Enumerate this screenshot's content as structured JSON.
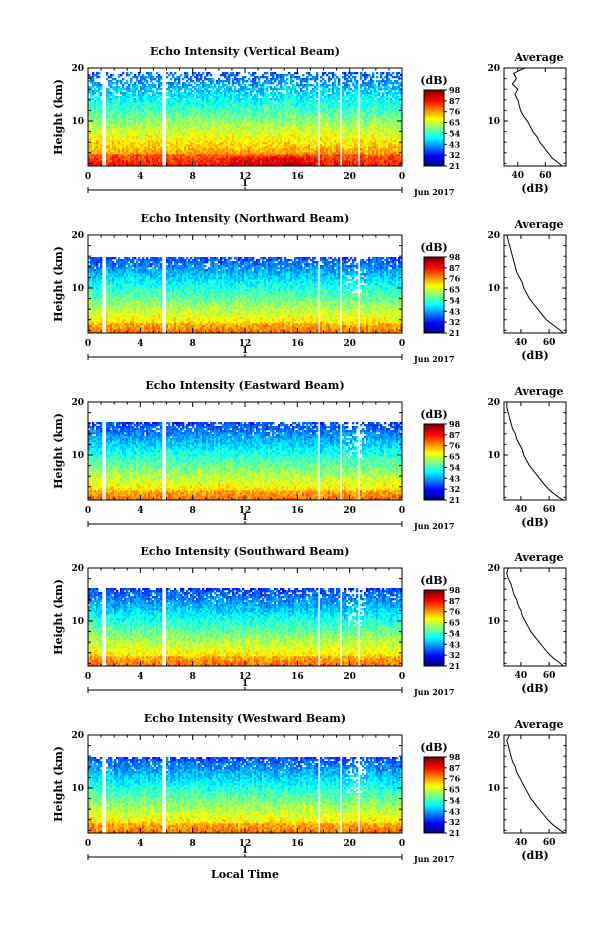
{
  "figure": {
    "xlabel": "Local Time",
    "date_label": "Jun 2017",
    "day_label": "1",
    "average_title": "Average",
    "average_xlabel": "(dB)",
    "colorbar_unit": "(dB)"
  },
  "chart_data": [
    {
      "type": "heatmap",
      "title": "Echo Intensity (Vertical Beam)",
      "ylabel": "Height (km)",
      "xlabel": "Local Time",
      "x_ticks": [
        "0",
        "4",
        "8",
        "12",
        "16",
        "20",
        "0"
      ],
      "x_range": [
        0,
        24
      ],
      "y_ticks": [
        10,
        20
      ],
      "y_range": [
        1.5,
        20
      ],
      "colorbar": {
        "unit": "(dB)",
        "ticks": [
          21,
          32,
          43,
          54,
          65,
          76,
          87,
          98
        ]
      },
      "gaps_hours": [
        [
          1.0,
          1.3
        ],
        [
          5.6,
          5.9
        ],
        [
          17.6,
          17.8
        ],
        [
          19.2,
          19.4
        ],
        [
          20.6,
          20.8
        ]
      ],
      "average_profile": {
        "title": "Average",
        "xlabel": "(dB)",
        "x_ticks": [
          40,
          60
        ],
        "x_range": [
          30,
          75
        ],
        "y_ticks": [
          10,
          20
        ],
        "height_km": [
          1.5,
          2,
          3,
          4,
          5,
          6,
          7,
          8,
          9,
          10,
          11,
          12,
          13,
          14,
          15,
          16,
          17,
          18,
          19,
          20
        ],
        "values_db": [
          72,
          70,
          65,
          62,
          59,
          56,
          54,
          51,
          49,
          47,
          44,
          42,
          41,
          40,
          38,
          40,
          36,
          39,
          37,
          45
        ]
      }
    },
    {
      "type": "heatmap",
      "title": "Echo Intensity (Northward Beam)",
      "ylabel": "Height (km)",
      "xlabel": "Local Time",
      "x_ticks": [
        "0",
        "4",
        "8",
        "12",
        "16",
        "20",
        "0"
      ],
      "x_range": [
        0,
        24
      ],
      "y_ticks": [
        10,
        20
      ],
      "y_range": [
        1.5,
        20
      ],
      "colorbar": {
        "unit": "(dB)",
        "ticks": [
          21,
          32,
          43,
          54,
          65,
          76,
          87,
          98
        ]
      },
      "gaps_hours": [
        [
          1.0,
          1.3
        ],
        [
          5.6,
          5.9
        ],
        [
          17.6,
          17.8
        ],
        [
          19.2,
          19.4
        ],
        [
          20.6,
          20.8
        ]
      ],
      "average_profile": {
        "title": "Average",
        "xlabel": "(dB)",
        "x_ticks": [
          40,
          60
        ],
        "x_range": [
          28,
          72
        ],
        "y_ticks": [
          10,
          20
        ],
        "height_km": [
          1.5,
          2,
          3,
          4,
          5,
          6,
          7,
          8,
          9,
          10,
          11,
          12,
          13,
          14,
          15,
          16,
          17,
          18,
          19,
          20
        ],
        "values_db": [
          70,
          68,
          63,
          58,
          55,
          52,
          49,
          46,
          44,
          42,
          41,
          39,
          37,
          36,
          35,
          34,
          33,
          32,
          31,
          30
        ]
      }
    },
    {
      "type": "heatmap",
      "title": "Echo Intensity (Eastward Beam)",
      "ylabel": "Height (km)",
      "xlabel": "Local Time",
      "x_ticks": [
        "0",
        "4",
        "8",
        "12",
        "16",
        "20",
        "0"
      ],
      "x_range": [
        0,
        24
      ],
      "y_ticks": [
        10,
        20
      ],
      "y_range": [
        1.5,
        20
      ],
      "colorbar": {
        "unit": "(dB)",
        "ticks": [
          21,
          32,
          43,
          54,
          65,
          76,
          87,
          98
        ]
      },
      "gaps_hours": [
        [
          1.0,
          1.3
        ],
        [
          5.6,
          5.9
        ],
        [
          17.6,
          17.8
        ],
        [
          19.2,
          19.4
        ],
        [
          20.6,
          20.8
        ]
      ],
      "average_profile": {
        "title": "Average",
        "xlabel": "(dB)",
        "x_ticks": [
          40,
          60
        ],
        "x_range": [
          28,
          72
        ],
        "y_ticks": [
          10,
          20
        ],
        "height_km": [
          1.5,
          2,
          3,
          4,
          5,
          6,
          7,
          8,
          9,
          10,
          11,
          12,
          13,
          14,
          15,
          16,
          17,
          18,
          19,
          20
        ],
        "values_db": [
          70,
          67,
          62,
          58,
          55,
          52,
          49,
          46,
          44,
          42,
          41,
          39,
          37,
          36,
          34,
          33,
          32,
          31,
          30,
          30
        ]
      }
    },
    {
      "type": "heatmap",
      "title": "Echo Intensity (Southward Beam)",
      "ylabel": "Height (km)",
      "xlabel": "Local Time",
      "x_ticks": [
        "0",
        "4",
        "8",
        "12",
        "16",
        "20",
        "0"
      ],
      "x_range": [
        0,
        24
      ],
      "y_ticks": [
        10,
        20
      ],
      "y_range": [
        1.5,
        20
      ],
      "colorbar": {
        "unit": "(dB)",
        "ticks": [
          21,
          32,
          43,
          54,
          65,
          76,
          87,
          98
        ]
      },
      "gaps_hours": [
        [
          1.0,
          1.3
        ],
        [
          5.6,
          5.9
        ],
        [
          17.6,
          17.8
        ],
        [
          19.2,
          19.4
        ],
        [
          20.6,
          20.8
        ]
      ],
      "average_profile": {
        "title": "Average",
        "xlabel": "(dB)",
        "x_ticks": [
          40,
          60
        ],
        "x_range": [
          28,
          72
        ],
        "y_ticks": [
          10,
          20
        ],
        "height_km": [
          1.5,
          2,
          3,
          4,
          5,
          6,
          7,
          8,
          9,
          10,
          11,
          12,
          13,
          14,
          15,
          16,
          17,
          18,
          19,
          20
        ],
        "values_db": [
          70,
          68,
          63,
          59,
          56,
          53,
          50,
          47,
          45,
          43,
          41,
          40,
          38,
          37,
          35,
          34,
          33,
          31,
          30,
          31
        ]
      }
    },
    {
      "type": "heatmap",
      "title": "Echo Intensity (Westward Beam)",
      "ylabel": "Height (km)",
      "xlabel": "Local Time",
      "x_ticks": [
        "0",
        "4",
        "8",
        "12",
        "16",
        "20",
        "0"
      ],
      "x_range": [
        0,
        24
      ],
      "y_ticks": [
        10,
        20
      ],
      "y_range": [
        1.5,
        20
      ],
      "colorbar": {
        "unit": "(dB)",
        "ticks": [
          21,
          32,
          43,
          54,
          65,
          76,
          87,
          98
        ]
      },
      "gaps_hours": [
        [
          1.0,
          1.3
        ],
        [
          5.6,
          5.9
        ],
        [
          17.6,
          17.8
        ],
        [
          19.2,
          19.4
        ],
        [
          20.6,
          20.8
        ]
      ],
      "average_profile": {
        "title": "Average",
        "xlabel": "(dB)",
        "x_ticks": [
          40,
          60
        ],
        "x_range": [
          28,
          72
        ],
        "y_ticks": [
          10,
          20
        ],
        "height_km": [
          1.5,
          2,
          3,
          4,
          5,
          6,
          7,
          8,
          9,
          10,
          11,
          12,
          13,
          14,
          15,
          16,
          17,
          18,
          19,
          20
        ],
        "values_db": [
          71,
          68,
          63,
          59,
          56,
          53,
          50,
          47,
          45,
          43,
          41,
          39,
          37,
          36,
          34,
          33,
          32,
          31,
          30,
          32
        ]
      }
    }
  ]
}
